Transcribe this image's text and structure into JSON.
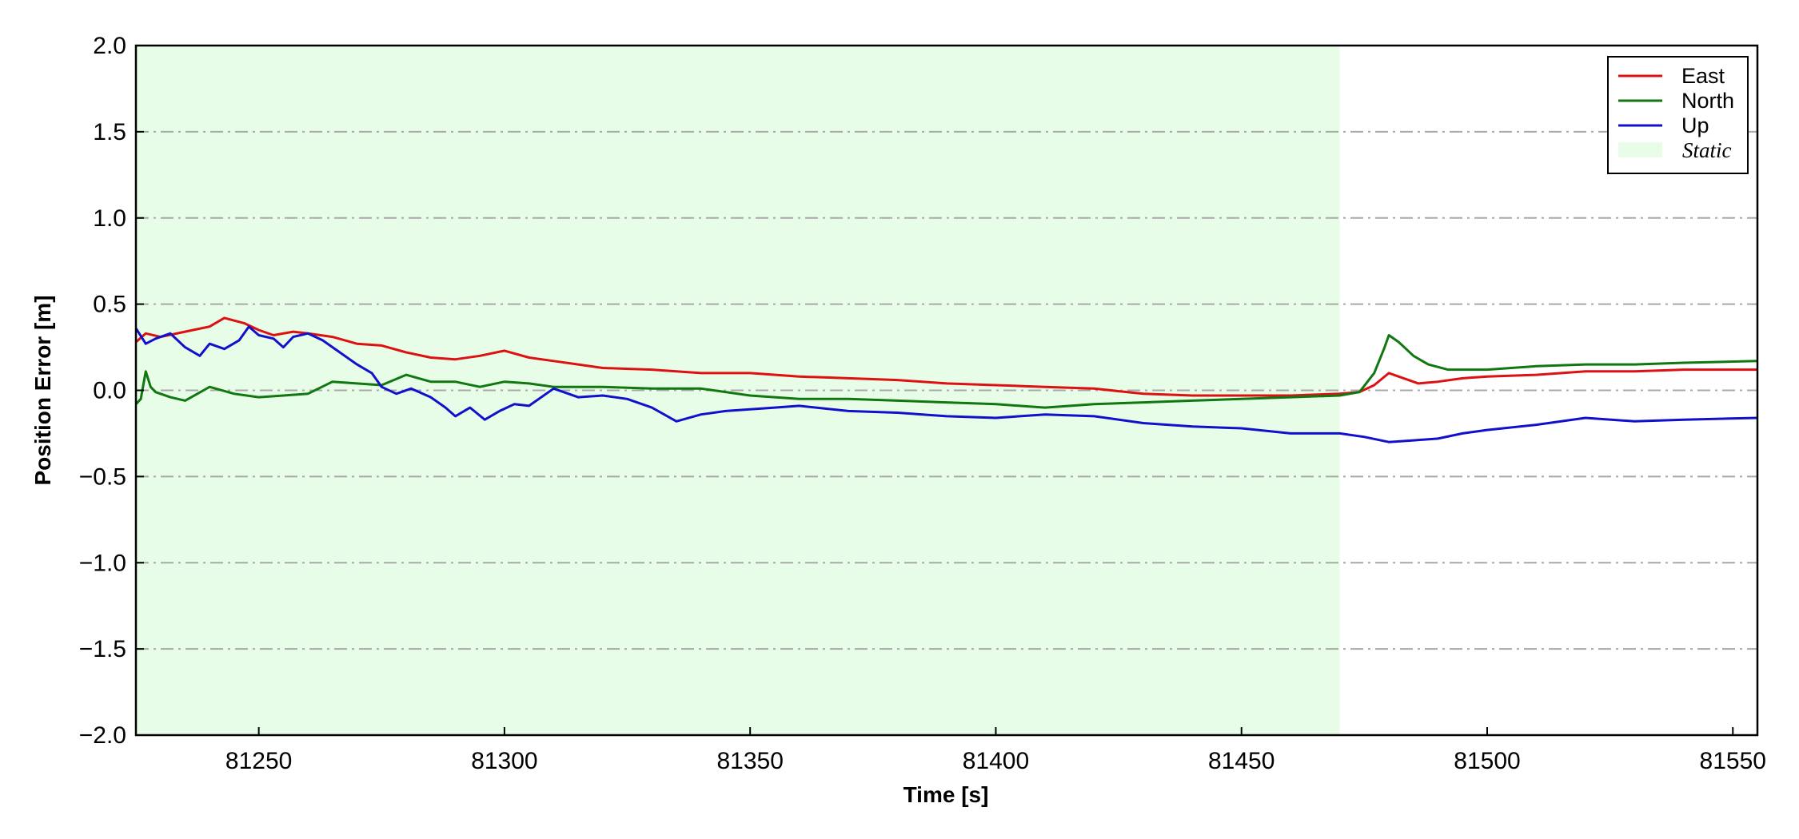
{
  "chart_data": {
    "type": "line",
    "xlabel": "Time [s]",
    "ylabel": "Position Error [m]",
    "xlim": [
      81225,
      81555
    ],
    "ylim": [
      -2.0,
      2.0
    ],
    "xticks": [
      81250,
      81300,
      81350,
      81400,
      81450,
      81500,
      81550
    ],
    "xtick_labels": [
      "81250",
      "81300",
      "81350",
      "81400",
      "81450",
      "81500",
      "81550"
    ],
    "yticks": [
      2.0,
      1.5,
      1.0,
      0.5,
      0.0,
      -0.5,
      -1.0,
      -1.5,
      -2.0
    ],
    "ytick_labels": [
      "2.0",
      "1.5",
      "1.0",
      "0.5",
      "0.0",
      "−0.5",
      "−1.0",
      "−1.5",
      "−2.0"
    ],
    "grid": "horizontal dash-dot",
    "legend_position": "top-right",
    "static_region": {
      "label": "Static",
      "x_start": 81225,
      "x_end": 81470,
      "color": "#e8fde8"
    },
    "series": [
      {
        "name": "East",
        "color": "#dd1111",
        "x": [
          81225,
          81227,
          81230,
          81235,
          81240,
          81243,
          81247,
          81250,
          81253,
          81257,
          81260,
          81265,
          81270,
          81275,
          81280,
          81285,
          81290,
          81295,
          81300,
          81305,
          81310,
          81315,
          81320,
          81330,
          81340,
          81350,
          81360,
          81370,
          81380,
          81390,
          81400,
          81410,
          81420,
          81430,
          81440,
          81450,
          81460,
          81470,
          81474,
          81477,
          81480,
          81483,
          81486,
          81490,
          81495,
          81500,
          81510,
          81520,
          81530,
          81540,
          81555
        ],
        "y": [
          0.28,
          0.33,
          0.31,
          0.34,
          0.37,
          0.42,
          0.39,
          0.35,
          0.32,
          0.34,
          0.33,
          0.31,
          0.27,
          0.26,
          0.22,
          0.19,
          0.18,
          0.2,
          0.23,
          0.19,
          0.17,
          0.15,
          0.13,
          0.12,
          0.1,
          0.1,
          0.08,
          0.07,
          0.06,
          0.04,
          0.03,
          0.02,
          0.01,
          -0.02,
          -0.03,
          -0.03,
          -0.03,
          -0.02,
          -0.01,
          0.03,
          0.1,
          0.07,
          0.04,
          0.05,
          0.07,
          0.08,
          0.09,
          0.11,
          0.11,
          0.12,
          0.12
        ]
      },
      {
        "name": "North",
        "color": "#117711",
        "x": [
          81225,
          81226,
          81227,
          81228,
          81229,
          81232,
          81235,
          81240,
          81245,
          81250,
          81255,
          81260,
          81265,
          81270,
          81275,
          81280,
          81285,
          81290,
          81295,
          81300,
          81305,
          81310,
          81320,
          81330,
          81340,
          81350,
          81360,
          81370,
          81380,
          81390,
          81400,
          81410,
          81420,
          81430,
          81440,
          81450,
          81460,
          81470,
          81474,
          81477,
          81479,
          81480,
          81482,
          81485,
          81488,
          81492,
          81500,
          81510,
          81520,
          81530,
          81540,
          81555
        ],
        "y": [
          -0.08,
          -0.05,
          0.11,
          0.02,
          -0.01,
          -0.04,
          -0.06,
          0.02,
          -0.02,
          -0.04,
          -0.03,
          -0.02,
          0.05,
          0.04,
          0.03,
          0.09,
          0.05,
          0.05,
          0.02,
          0.05,
          0.04,
          0.02,
          0.02,
          0.01,
          0.01,
          -0.03,
          -0.05,
          -0.05,
          -0.06,
          -0.07,
          -0.08,
          -0.1,
          -0.08,
          -0.07,
          -0.06,
          -0.05,
          -0.04,
          -0.03,
          -0.01,
          0.1,
          0.24,
          0.32,
          0.28,
          0.2,
          0.15,
          0.12,
          0.12,
          0.14,
          0.15,
          0.15,
          0.16,
          0.17
        ]
      },
      {
        "name": "Up",
        "color": "#1111cc",
        "x": [
          81225,
          81227,
          81229,
          81232,
          81235,
          81238,
          81240,
          81243,
          81246,
          81248,
          81250,
          81253,
          81255,
          81257,
          81260,
          81263,
          81266,
          81270,
          81273,
          81275,
          81278,
          81281,
          81285,
          81288,
          81290,
          81293,
          81296,
          81299,
          81302,
          81305,
          81310,
          81315,
          81320,
          81325,
          81330,
          81335,
          81340,
          81345,
          81350,
          81355,
          81360,
          81370,
          81380,
          81390,
          81400,
          81410,
          81420,
          81430,
          81440,
          81450,
          81460,
          81470,
          81475,
          81480,
          81485,
          81490,
          81495,
          81500,
          81510,
          81520,
          81530,
          81540,
          81555
        ],
        "y": [
          0.36,
          0.27,
          0.3,
          0.33,
          0.25,
          0.2,
          0.27,
          0.24,
          0.29,
          0.37,
          0.32,
          0.3,
          0.25,
          0.31,
          0.33,
          0.29,
          0.23,
          0.15,
          0.1,
          0.02,
          -0.02,
          0.01,
          -0.04,
          -0.1,
          -0.15,
          -0.1,
          -0.17,
          -0.12,
          -0.08,
          -0.09,
          0.01,
          -0.04,
          -0.03,
          -0.05,
          -0.1,
          -0.18,
          -0.14,
          -0.12,
          -0.11,
          -0.1,
          -0.09,
          -0.12,
          -0.13,
          -0.15,
          -0.16,
          -0.14,
          -0.15,
          -0.19,
          -0.21,
          -0.22,
          -0.25,
          -0.25,
          -0.27,
          -0.3,
          -0.29,
          -0.28,
          -0.25,
          -0.23,
          -0.2,
          -0.16,
          -0.18,
          -0.17,
          -0.16
        ]
      }
    ]
  }
}
